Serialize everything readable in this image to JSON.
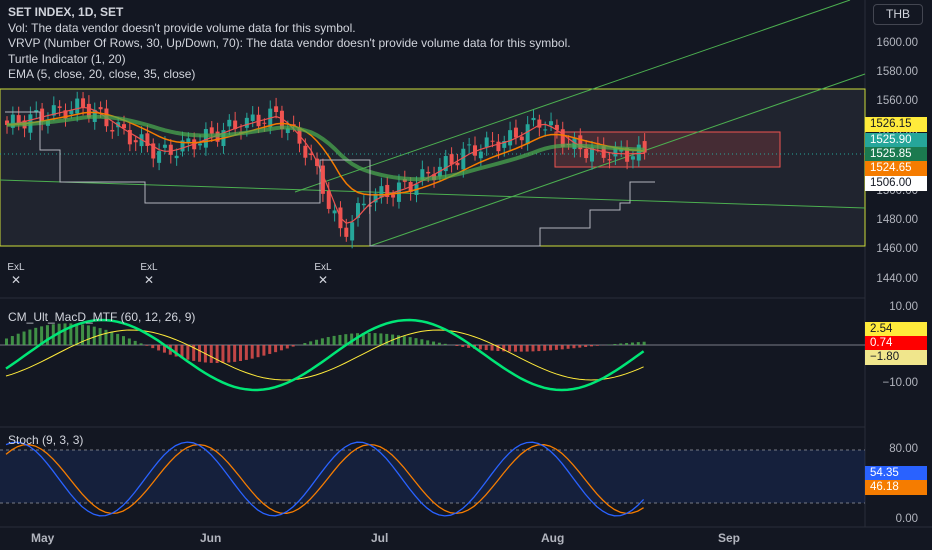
{
  "header": {
    "symbol_line": "SET INDEX, 1D, SET",
    "vol_line": "Vol: The data vendor doesn't provide volume data for this symbol.",
    "vrvp_line": "VRVP (Number Of Rows, 30, Up/Down, 70): The data vendor doesn't provide volume data for this symbol.",
    "turtle_line": "Turtle Indicator (1, 20)",
    "ema_line": "EMA (5, close, 20, close, 35, close)"
  },
  "currency": "THB",
  "price_axis": {
    "ticks": [
      "1600.00",
      "1580.00",
      "1560.00",
      "1540.00",
      "1520.00",
      "1500.00",
      "1480.00",
      "1460.00",
      "1440.00"
    ],
    "badges": [
      {
        "text": "1526.15",
        "bg": "#ffeb3b",
        "fg": "#131722"
      },
      {
        "text": "1525.90",
        "bg": "#26a69a",
        "fg": "#ffffff"
      },
      {
        "text": "1525.85",
        "bg": "#1b7a4f",
        "fg": "#ffffff"
      },
      {
        "text": "1524.65",
        "bg": "#f57c00",
        "fg": "#ffffff"
      },
      {
        "text": "1506.00",
        "bg": "#ffffff",
        "fg": "#131722"
      }
    ]
  },
  "exl_markers": [
    {
      "label": "ExL",
      "mark": "✕"
    },
    {
      "label": "ExL",
      "mark": "✕"
    },
    {
      "label": "ExL",
      "mark": "✕"
    }
  ],
  "macd_pane": {
    "title": "CM_Ult_MacD_MTF (60, 12, 26, 9)",
    "ticks": [
      "10.00",
      "−10.00"
    ],
    "badges": [
      {
        "text": "2.54",
        "bg": "#ffeb3b",
        "fg": "#131722"
      },
      {
        "text": "0.74",
        "bg": "#ff0000",
        "fg": "#ffffff"
      },
      {
        "text": "−1.80",
        "bg": "#f0e68c",
        "fg": "#131722"
      }
    ]
  },
  "stoch_pane": {
    "title": "Stoch (9, 3, 3)",
    "ticks": [
      "80.00",
      "0.00"
    ],
    "badges": [
      {
        "text": "54.35",
        "bg": "#2962ff",
        "fg": "#ffffff"
      },
      {
        "text": "46.18",
        "bg": "#f57c00",
        "fg": "#ffffff"
      }
    ]
  },
  "time_axis": [
    "May",
    "Jun",
    "Jul",
    "Aug",
    "Sep"
  ],
  "colors": {
    "up": "#26a69a",
    "down": "#ef5350",
    "bg": "#131722"
  }
}
